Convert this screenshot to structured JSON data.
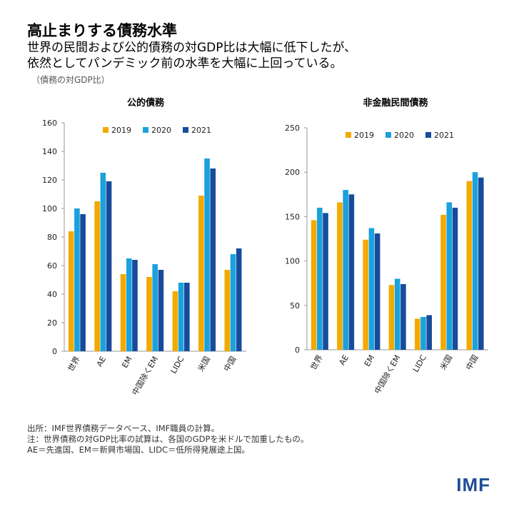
{
  "header": {
    "title": "高止まりする債務水準",
    "subtitle_line1": "世界の民間および公的債務の対GDP比は大幅に低下したが、",
    "subtitle_line2": "依然としてパンデミック前の水準を大幅に上回っている。",
    "unit_note": "（債務の対GDP比）"
  },
  "colors": {
    "s2019": "#f2a900",
    "s2020": "#1ba1dc",
    "s2021": "#174c9c"
  },
  "chart_data": [
    {
      "type": "bar",
      "title": "公的債務",
      "categories": [
        "世界",
        "AE",
        "EM",
        "中国除くEM",
        "LIDC",
        "米国",
        "中国"
      ],
      "series": [
        {
          "name": "2019",
          "values": [
            84,
            105,
            54,
            52,
            42,
            109,
            57
          ]
        },
        {
          "name": "2020",
          "values": [
            100,
            125,
            65,
            61,
            48,
            135,
            68
          ]
        },
        {
          "name": "2021",
          "values": [
            96,
            119,
            64,
            57,
            48,
            128,
            72
          ]
        }
      ],
      "ylim": [
        0,
        160
      ],
      "yticks": [
        0,
        20,
        40,
        60,
        80,
        100,
        120,
        140,
        160
      ],
      "legend": "top-center"
    },
    {
      "type": "bar",
      "title": "非金融民間債務",
      "categories": [
        "世界",
        "AE",
        "EM",
        "中国除くEM",
        "LIDC",
        "米国",
        "中国"
      ],
      "series": [
        {
          "name": "2019",
          "values": [
            146,
            166,
            124,
            73,
            35,
            152,
            190
          ]
        },
        {
          "name": "2020",
          "values": [
            160,
            180,
            137,
            80,
            37,
            166,
            200
          ]
        },
        {
          "name": "2021",
          "values": [
            154,
            175,
            131,
            74,
            39,
            160,
            194
          ]
        }
      ],
      "ylim": [
        0,
        250
      ],
      "yticks": [
        0,
        50,
        100,
        150,
        200,
        250
      ],
      "legend": "top-center"
    }
  ],
  "notes": {
    "line1": "出所：IMF世界債務データベース、IMF職員の計算。",
    "line2": "注：世界債務の対GDP比率の試算は、各国のGDPを米ドルで加重したもの。",
    "line3": "AE＝先進国、EM＝新興市場国、LIDC＝低所得発展途上国。"
  },
  "logo": {
    "text": "IMF"
  }
}
